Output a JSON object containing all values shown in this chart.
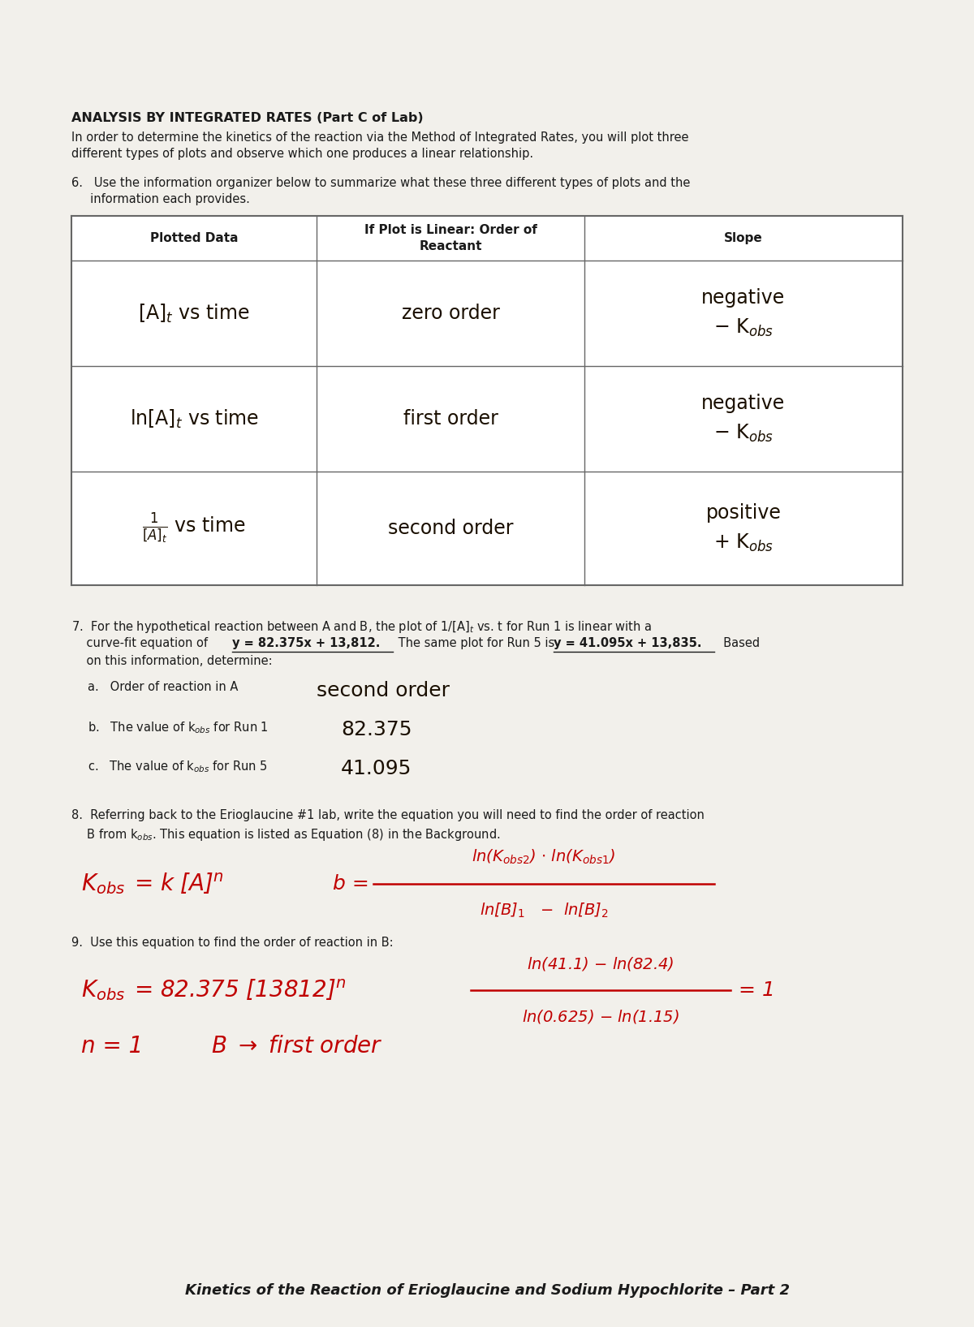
{
  "bg_color": "#f2f0eb",
  "title_bold": "ANALYSIS BY INTEGRATED RATES (Part C of Lab)",
  "intro_line1": "In order to determine the kinetics of the reaction via the Method of Integrated Rates, you will plot three",
  "intro_line2": "different types of plots and observe which one produces a linear relationship.",
  "q6_line1": "6.   Use the information organizer below to summarize what these three different types of plots and the",
  "q6_line2": "     information each provides.",
  "table_headers": [
    "Plotted Data",
    "If Plot is Linear: Order of\nReactant",
    "Slope"
  ],
  "footer": "Kinetics of the Reaction of Erioglaucine and Sodium Hypochlorite – Part 2",
  "text_color": "#1a1a1a",
  "handwritten_color": "#1a0f00",
  "red_color": "#c00000",
  "table_line_color": "#666666"
}
